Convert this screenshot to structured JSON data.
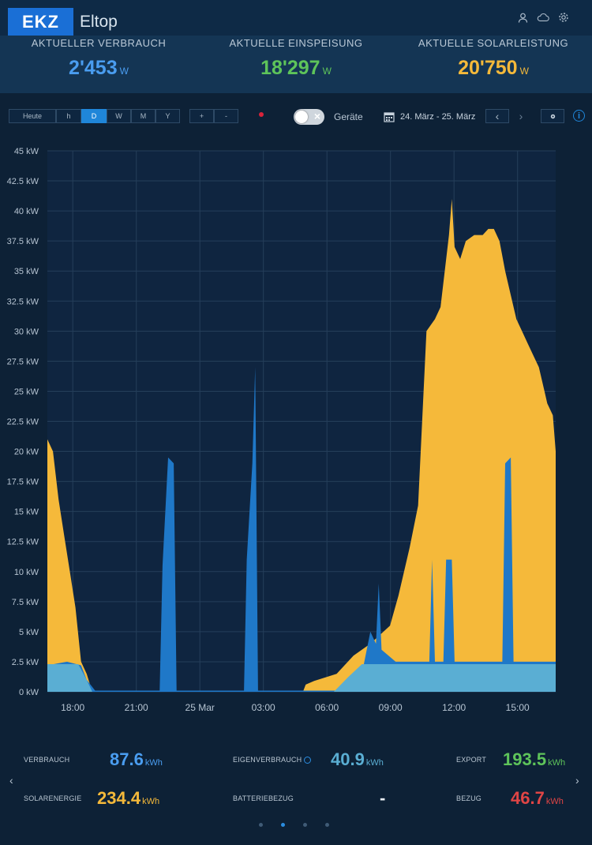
{
  "header": {
    "logo": "EKZ",
    "app_name": "Eltop"
  },
  "stats": [
    {
      "label": "AKTUELLER VERBRAUCH",
      "value": "2'453",
      "unit": "W",
      "color": "#4a9df0"
    },
    {
      "label": "AKTUELLE EINSPEISUNG",
      "value": "18'297",
      "unit": "W",
      "color": "#5ec45a"
    },
    {
      "label": "AKTUELLE SOLARLEISTUNG",
      "value": "20'750",
      "unit": "W",
      "color": "#f5b93a"
    }
  ],
  "controls": {
    "range_buttons": [
      "Heute",
      "h",
      "D",
      "W",
      "M",
      "Y"
    ],
    "active_range": "D",
    "zoom_buttons": [
      "+",
      "-"
    ],
    "devices_label": "Geräte",
    "date_range": "24. März - 25. März",
    "prev": "‹",
    "next": "›"
  },
  "chart_data": {
    "type": "area",
    "y_ticks": [
      "45 kW",
      "42.5 kW",
      "40 kW",
      "37.5 kW",
      "35 kW",
      "32.5 kW",
      "30 kW",
      "27.5 kW",
      "25 kW",
      "22.5 kW",
      "20 kW",
      "17.5 kW",
      "15 kW",
      "12.5 kW",
      "10 kW",
      "7.5 kW",
      "5 kW",
      "2.5 kW",
      "0 kW"
    ],
    "x_ticks": [
      "18:00",
      "21:00",
      "25 Mar",
      "03:00",
      "06:00",
      "09:00",
      "12:00",
      "15:00"
    ],
    "ylim": [
      0,
      45
    ],
    "xlim_hours": [
      16.8,
      40.8
    ],
    "grid": true,
    "colors": {
      "solar": "#f5b93a",
      "verbrauch": "#1f78c8",
      "eigenverbrauch": "#5aaed3"
    },
    "solar": [
      [
        16.8,
        21
      ],
      [
        17.0,
        20
      ],
      [
        17.2,
        16
      ],
      [
        17.4,
        13
      ],
      [
        17.6,
        10
      ],
      [
        17.8,
        7
      ],
      [
        18.0,
        2.5
      ],
      [
        18.2,
        1.5
      ],
      [
        18.4,
        0
      ],
      [
        25.9,
        0
      ],
      [
        26.0,
        0.6
      ],
      [
        26.3,
        0.9
      ],
      [
        27.1,
        1.5
      ],
      [
        27.7,
        3
      ],
      [
        28.3,
        4
      ],
      [
        29.0,
        5.5
      ],
      [
        29.3,
        8
      ],
      [
        29.7,
        12
      ],
      [
        30.0,
        15.5
      ],
      [
        30.3,
        30
      ],
      [
        30.6,
        31
      ],
      [
        30.8,
        32
      ],
      [
        31.1,
        38
      ],
      [
        31.2,
        41
      ],
      [
        31.3,
        37
      ],
      [
        31.5,
        36
      ],
      [
        31.7,
        37.5
      ],
      [
        32.0,
        38
      ],
      [
        32.3,
        38
      ],
      [
        32.5,
        38.5
      ],
      [
        32.7,
        38.5
      ],
      [
        32.9,
        37.5
      ],
      [
        33.1,
        35
      ],
      [
        33.3,
        33
      ],
      [
        33.5,
        31
      ],
      [
        33.7,
        30
      ],
      [
        33.9,
        29
      ],
      [
        34.1,
        28
      ],
      [
        34.3,
        27
      ],
      [
        34.5,
        25
      ],
      [
        34.6,
        24
      ],
      [
        34.8,
        23
      ],
      [
        34.9,
        20
      ]
    ],
    "verbrauch": [
      [
        16.8,
        2.2
      ],
      [
        17.5,
        2.5
      ],
      [
        18.0,
        2.2
      ],
      [
        18.2,
        1.0
      ],
      [
        18.5,
        0.1
      ],
      [
        20.8,
        0.1
      ],
      [
        20.9,
        10.5
      ],
      [
        21.1,
        19.5
      ],
      [
        21.3,
        19
      ],
      [
        21.4,
        0.1
      ],
      [
        23.8,
        0.1
      ],
      [
        23.9,
        11
      ],
      [
        24.1,
        19
      ],
      [
        24.2,
        27
      ],
      [
        24.3,
        0.1
      ],
      [
        27.5,
        0.1
      ],
      [
        28.0,
        1.5
      ],
      [
        28.3,
        5
      ],
      [
        28.5,
        4
      ],
      [
        28.6,
        9
      ],
      [
        28.7,
        3.5
      ],
      [
        29.2,
        2.5
      ],
      [
        29.3,
        2.5
      ],
      [
        30.4,
        2.5
      ],
      [
        30.5,
        11
      ],
      [
        30.6,
        2.5
      ],
      [
        30.9,
        2.5
      ],
      [
        31.0,
        11
      ],
      [
        31.2,
        11
      ],
      [
        31.3,
        2.5
      ],
      [
        33.0,
        2.5
      ],
      [
        33.1,
        19
      ],
      [
        33.3,
        19.5
      ],
      [
        33.4,
        2.5
      ],
      [
        34.9,
        2.5
      ]
    ],
    "eigenverbrauch": [
      [
        16.8,
        2.3
      ],
      [
        34.9,
        2.3
      ]
    ]
  },
  "summary": {
    "items": [
      {
        "label": "VERBRAUCH",
        "value": "87.6",
        "unit": "kWh",
        "color": "#4a9df0"
      },
      {
        "label": "EIGENVERBRAUCH",
        "value": "40.9",
        "unit": "kWh",
        "color": "#5aaed3"
      },
      {
        "label": "EXPORT",
        "value": "193.5",
        "unit": "kWh",
        "color": "#5ec45a"
      },
      {
        "label": "SOLARENERGIE",
        "value": "234.4",
        "unit": "kWh",
        "color": "#f5b93a"
      },
      {
        "label": "BATTERIEBEZUG",
        "value": "-",
        "unit": "",
        "color": "#e8eef4"
      },
      {
        "label": "BEZUG",
        "value": "46.7",
        "unit": "kWh",
        "color": "#e04545"
      }
    ],
    "left_arrow": "‹",
    "right_arrow": "›"
  }
}
